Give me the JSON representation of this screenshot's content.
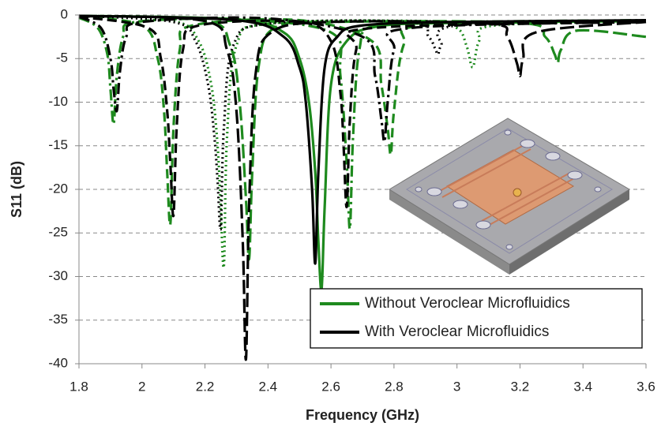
{
  "chart_data": {
    "type": "line",
    "xlabel": "Frequency (GHz)",
    "ylabel": "S11 (dB)",
    "xlim": [
      1.8,
      3.6
    ],
    "xticks": [
      1.8,
      2,
      2.2,
      2.4,
      2.6,
      2.8,
      3,
      3.2,
      3.4,
      3.6
    ],
    "ylim": [
      -40,
      0
    ],
    "yticks": [
      0,
      -5,
      -10,
      -15,
      -20,
      -25,
      -30,
      -35,
      -40
    ],
    "grid": true,
    "legend": "lower right",
    "series": [
      {
        "name": "Without Veroclear Microfluidics",
        "color": "#1e8a1e",
        "curves": [
          {
            "dash": "dashdot",
            "x": [
              1.8,
              1.86,
              1.89,
              1.9,
              1.91,
              1.92,
              1.94,
              1.98,
              2.3,
              2.6,
              2.63,
              2.65,
              2.66,
              2.67,
              2.69,
              2.74,
              3.0,
              3.6
            ],
            "values": [
              -0.3,
              -1.5,
              -4.5,
              -8.5,
              -12.5,
              -7,
              -2.5,
              -0.8,
              -0.5,
              -2,
              -7,
              -17,
              -24.5,
              -14,
              -4,
              -1.2,
              -0.8,
              -0.6
            ]
          },
          {
            "dash": "dashed",
            "x": [
              1.8,
              2.0,
              2.05,
              2.07,
              2.08,
              2.09,
              2.1,
              2.12,
              2.16,
              2.5,
              2.73,
              2.76,
              2.78,
              2.79,
              2.8,
              2.83,
              2.9,
              3.6
            ],
            "values": [
              -0.2,
              -1.2,
              -5,
              -11,
              -18,
              -24,
              -13,
              -4,
              -1.2,
              -0.6,
              -3,
              -8,
              -13,
              -16,
              -11,
              -3.5,
              -1.2,
              -0.8
            ]
          },
          {
            "dash": "dotted",
            "x": [
              1.8,
              2.1,
              2.18,
              2.22,
              2.24,
              2.25,
              2.26,
              2.27,
              2.3,
              2.4,
              2.9,
              3.0,
              3.03,
              3.05,
              3.07,
              3.12,
              3.6
            ],
            "values": [
              -0.1,
              -0.7,
              -3,
              -8,
              -15,
              -22,
              -28.8,
              -14,
              -3.5,
              -1,
              -0.7,
              -1.5,
              -3.5,
              -6,
              -3,
              -1.2,
              -0.8
            ]
          },
          {
            "dash": "longdash",
            "x": [
              1.8,
              2.2,
              2.28,
              2.31,
              2.33,
              2.34,
              2.35,
              2.37,
              2.42,
              2.6,
              3.2,
              3.28,
              3.31,
              3.32,
              3.33,
              3.38,
              3.6
            ],
            "values": [
              -0.1,
              -0.6,
              -3.5,
              -10,
              -21,
              -28,
              -18,
              -6,
              -1.5,
              -0.8,
              -0.9,
              -2.5,
              -4.5,
              -5.5,
              -4,
              -1.8,
              -2.5
            ]
          },
          {
            "dash": "solid",
            "x": [
              1.8,
              2.3,
              2.45,
              2.5,
              2.53,
              2.55,
              2.56,
              2.57,
              2.58,
              2.6,
              2.65,
              2.75,
              3.0,
              3.6
            ],
            "values": [
              -0.1,
              -0.5,
              -2,
              -5,
              -10,
              -18,
              -26,
              -31.5,
              -22,
              -8,
              -3,
              -1.3,
              -0.9,
              -0.7
            ]
          }
        ]
      },
      {
        "name": "With Veroclear Microfluidics",
        "color": "#000000",
        "curves": [
          {
            "dash": "dashdot",
            "x": [
              1.8,
              1.87,
              1.9,
              1.91,
              1.92,
              1.93,
              1.95,
              2.0,
              2.4,
              2.7,
              2.74,
              2.76,
              2.77,
              2.78,
              2.8,
              2.85,
              3.6
            ],
            "values": [
              -0.2,
              -1.5,
              -5,
              -8.5,
              -11,
              -6.5,
              -2.5,
              -0.8,
              -0.4,
              -2.5,
              -7,
              -12,
              -14.5,
              -10,
              -4,
              -1.5,
              -0.8
            ]
          },
          {
            "dash": "dashed",
            "x": [
              1.8,
              2.02,
              2.06,
              2.08,
              2.09,
              2.1,
              2.11,
              2.13,
              2.18,
              2.5,
              2.6,
              2.63,
              2.64,
              2.65,
              2.66,
              2.68,
              2.73,
              3.6
            ],
            "values": [
              -0.2,
              -1.5,
              -5,
              -11,
              -17,
              -23,
              -13,
              -4,
              -1.2,
              -0.8,
              -3,
              -9,
              -15,
              -22,
              -12,
              -4,
              -1.5,
              -0.8
            ]
          },
          {
            "dash": "dotted",
            "x": [
              1.8,
              2.1,
              2.17,
              2.21,
              2.23,
              2.24,
              2.25,
              2.26,
              2.29,
              2.4,
              2.85,
              2.91,
              2.93,
              2.94,
              2.95,
              3.0,
              3.6
            ],
            "values": [
              -0.1,
              -0.8,
              -3,
              -8,
              -14,
              -19,
              -24.5,
              -13,
              -3.5,
              -1,
              -0.8,
              -2.5,
              -3.8,
              -4.5,
              -3.5,
              -1.2,
              -0.8
            ]
          },
          {
            "dash": "longdash",
            "x": [
              1.8,
              2.2,
              2.27,
              2.3,
              2.32,
              2.33,
              2.34,
              2.36,
              2.41,
              2.6,
              3.1,
              3.16,
              3.19,
              3.2,
              3.21,
              3.25,
              3.6
            ],
            "values": [
              -0.1,
              -0.7,
              -4,
              -11,
              -26,
              -39.5,
              -22,
              -7,
              -2,
              -0.8,
              -1,
              -2.5,
              -5.5,
              -7,
              -5,
              -2,
              -0.8
            ]
          },
          {
            "dash": "solid",
            "x": [
              1.8,
              2.3,
              2.45,
              2.5,
              2.52,
              2.54,
              2.55,
              2.56,
              2.58,
              2.62,
              2.7,
              3.0,
              3.6
            ],
            "values": [
              -0.1,
              -0.6,
              -2.5,
              -6,
              -10,
              -20,
              -28.5,
              -18,
              -6,
              -2.5,
              -1.2,
              -0.8,
              -0.6
            ]
          }
        ]
      }
    ]
  }
}
